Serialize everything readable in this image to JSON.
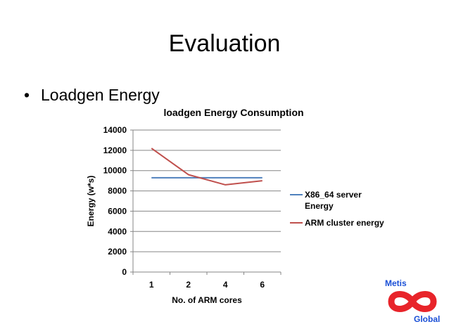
{
  "slide": {
    "title": "Evaluation",
    "bullet_char": "•",
    "bullet_text": "Loadgen Energy"
  },
  "chart_data": {
    "type": "line",
    "title": "loadgen Energy Consumption",
    "xlabel": "No. of ARM cores",
    "ylabel": "Energy (w*s)",
    "categories": [
      "1",
      "2",
      "4",
      "6"
    ],
    "y_ticks": [
      "0",
      "2000",
      "4000",
      "6000",
      "8000",
      "10000",
      "12000",
      "14000"
    ],
    "ylim": [
      0,
      14000
    ],
    "grid": true,
    "legend_position": "right",
    "series": [
      {
        "name_lines": [
          "X86_64 server",
          "Energy"
        ],
        "color": "#4f81bd",
        "values": [
          9300,
          9300,
          9300,
          9300
        ]
      },
      {
        "name_lines": [
          "ARM cluster energy"
        ],
        "color": "#c0504d",
        "values": [
          12200,
          9600,
          8600,
          9000
        ]
      }
    ]
  },
  "logo": {
    "top_text": "Metis",
    "bottom_text": "Global",
    "text_color": "#1a4fd6",
    "symbol_color": "#e8242a",
    "symbol_icon": "infinity-icon"
  }
}
